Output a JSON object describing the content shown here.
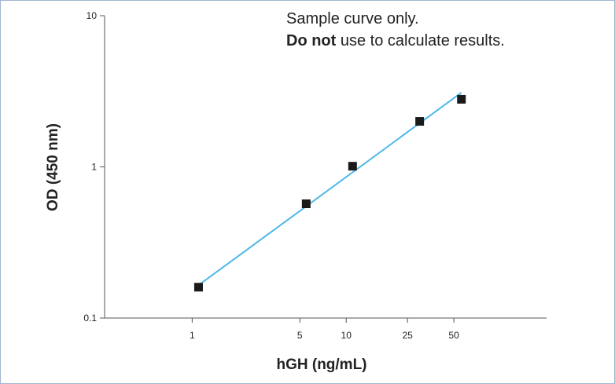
{
  "chart_data": {
    "type": "scatter",
    "xlabel": "hGH (ng/mL)",
    "ylabel": "OD (450 nm)",
    "x_scale": "log",
    "y_scale": "log",
    "xlim": [
      0.27,
      200
    ],
    "ylim": [
      0.1,
      10
    ],
    "x_ticks": [
      {
        "value": 1,
        "label": "1"
      },
      {
        "value": 5,
        "label": "5"
      },
      {
        "value": 10,
        "label": "10"
      },
      {
        "value": 25,
        "label": "25"
      },
      {
        "value": 50,
        "label": "50"
      }
    ],
    "y_ticks": [
      {
        "value": 0.1,
        "label": "0.1"
      },
      {
        "value": 1,
        "label": "1"
      },
      {
        "value": 10,
        "label": "10"
      }
    ],
    "points": [
      {
        "x": 1.1,
        "y": 0.16
      },
      {
        "x": 5.5,
        "y": 0.57
      },
      {
        "x": 11,
        "y": 1.01
      },
      {
        "x": 30,
        "y": 2.0
      },
      {
        "x": 56,
        "y": 2.8
      }
    ],
    "fit_line": {
      "x": [
        1.1,
        56
      ],
      "y": [
        0.165,
        3.1
      ],
      "color": "#4db8e8"
    },
    "marker_color": "#1a1a1a",
    "grid": false,
    "annotation": {
      "line1": "Sample curve only.",
      "line2_bold": "Do not",
      "line2_rest": " use to calculate results."
    }
  }
}
